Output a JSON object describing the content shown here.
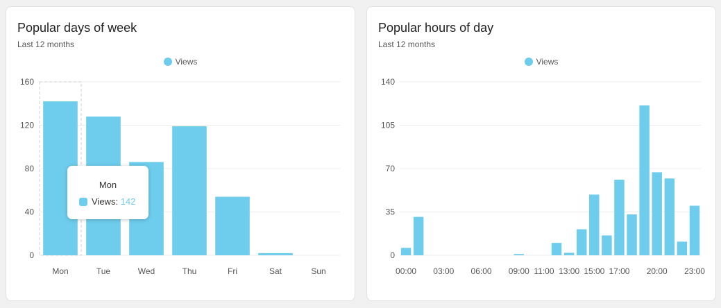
{
  "colors": {
    "bar": "#6ecdec",
    "grid": "#ececec",
    "axis_text": "#555555",
    "tooltip_value": "#6ecdec"
  },
  "cards": [
    {
      "title": "Popular days of week",
      "subtitle": "Last 12 months",
      "legend": "Views"
    },
    {
      "title": "Popular hours of day",
      "subtitle": "Last 12 months",
      "legend": "Views"
    }
  ],
  "tooltip": {
    "title": "Mon",
    "label": "Views:",
    "value": "142"
  },
  "chart_data": [
    {
      "type": "bar",
      "title": "Popular days of week",
      "categories": [
        "Mon",
        "Tue",
        "Wed",
        "Thu",
        "Fri",
        "Sat",
        "Sun"
      ],
      "series": [
        {
          "name": "Views",
          "values": [
            142,
            128,
            86,
            119,
            54,
            2,
            0
          ]
        }
      ],
      "ylim": [
        0,
        160
      ],
      "yticks": [
        0,
        40,
        80,
        120,
        160
      ],
      "grid": true,
      "legend_position": "top-center"
    },
    {
      "type": "bar",
      "title": "Popular hours of day",
      "categories": [
        "00:00",
        "01:00",
        "02:00",
        "03:00",
        "04:00",
        "05:00",
        "06:00",
        "07:00",
        "08:00",
        "09:00",
        "10:00",
        "11:00",
        "12:00",
        "13:00",
        "14:00",
        "15:00",
        "16:00",
        "17:00",
        "18:00",
        "19:00",
        "20:00",
        "21:00",
        "22:00",
        "23:00"
      ],
      "tick_labels": [
        "00:00",
        "03:00",
        "06:00",
        "09:00",
        "11:00",
        "13:00",
        "15:00",
        "17:00",
        "20:00",
        "23:00"
      ],
      "series": [
        {
          "name": "Views",
          "values": [
            6,
            31,
            0,
            0,
            0,
            0,
            0,
            0,
            0,
            1,
            0,
            0,
            10,
            2,
            21,
            49,
            16,
            61,
            33,
            121,
            67,
            62,
            11,
            40
          ]
        }
      ],
      "ylim": [
        0,
        140
      ],
      "yticks": [
        0,
        35,
        70,
        105,
        140
      ],
      "grid": true,
      "legend_position": "top-center"
    }
  ]
}
